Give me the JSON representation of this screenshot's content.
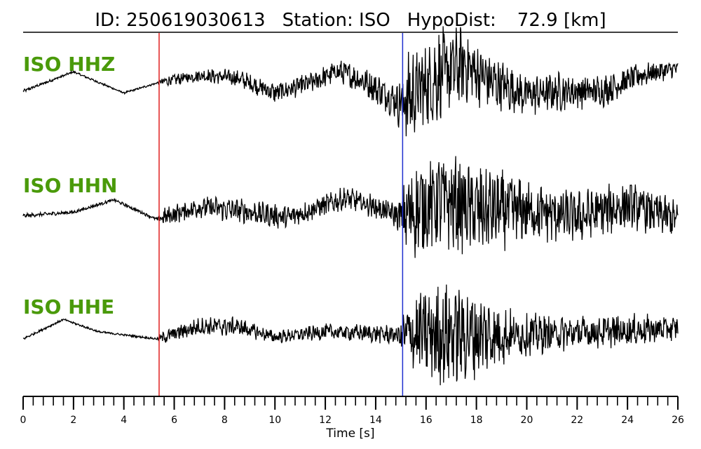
{
  "header": {
    "id_text": "ID: 250619030613",
    "station_text": "Station: ISO",
    "hypodist_label": "HypoDist:",
    "hypodist_value": "72.9 [km]"
  },
  "colors": {
    "channel_label": "#4a9a0a",
    "p_pick": "#e02020",
    "s_pick": "#2030d0",
    "trace": "#000000"
  },
  "chart_data": {
    "type": "line",
    "title": "ID: 250619030613   Station: ISO   HypoDist:    72.9 [km]",
    "xlabel": "Time [s]",
    "xlim": [
      0,
      26
    ],
    "xticks": [
      0,
      2,
      4,
      6,
      8,
      10,
      12,
      14,
      16,
      18,
      20,
      22,
      24,
      26
    ],
    "minor_tick_step": 0.4,
    "picks": [
      {
        "name": "P",
        "time": 5.4,
        "color": "#e02020"
      },
      {
        "name": "S",
        "time": 15.07,
        "color": "#2030d0"
      }
    ],
    "series": [
      {
        "name": "ISO HHZ",
        "envelope": [
          [
            0,
            0.08
          ],
          [
            1.5,
            0.06
          ],
          [
            3,
            0.05
          ],
          [
            4.5,
            0.05
          ],
          [
            5.3,
            0.05
          ],
          [
            5.6,
            0.25
          ],
          [
            8,
            0.4
          ],
          [
            10,
            0.5
          ],
          [
            12,
            0.55
          ],
          [
            13.5,
            0.7
          ],
          [
            14.8,
            0.9
          ],
          [
            15.3,
            2.4
          ],
          [
            16.5,
            2.3
          ],
          [
            18,
            1.6
          ],
          [
            19.5,
            1.1
          ],
          [
            21,
            1.0
          ],
          [
            23,
            0.8
          ],
          [
            24.5,
            0.6
          ],
          [
            26,
            0.4
          ]
        ],
        "lowfreq": [
          [
            0,
            -0.2
          ],
          [
            2,
            0.9
          ],
          [
            4,
            -0.3
          ],
          [
            5.4,
            0.3
          ],
          [
            7,
            0.7
          ],
          [
            8.5,
            0.55
          ],
          [
            10,
            -0.3
          ],
          [
            11.5,
            0.3
          ],
          [
            12.5,
            0.95
          ],
          [
            13.5,
            0.4
          ],
          [
            15,
            -0.9
          ],
          [
            16.5,
            0.7
          ],
          [
            17.5,
            1.3
          ],
          [
            18.5,
            0.4
          ],
          [
            20,
            -0.4
          ],
          [
            21.5,
            -0.2
          ],
          [
            23,
            -0.2
          ],
          [
            24.5,
            0.7
          ],
          [
            26,
            1.1
          ]
        ]
      },
      {
        "name": "ISO HHN",
        "envelope": [
          [
            0,
            0.1
          ],
          [
            2,
            0.08
          ],
          [
            4,
            0.08
          ],
          [
            5.3,
            0.08
          ],
          [
            5.6,
            0.45
          ],
          [
            8,
            0.6
          ],
          [
            10,
            0.6
          ],
          [
            12,
            0.55
          ],
          [
            14,
            0.6
          ],
          [
            14.9,
            0.7
          ],
          [
            15.3,
            2.3
          ],
          [
            17,
            2.4
          ],
          [
            18.5,
            2.2
          ],
          [
            20,
            1.5
          ],
          [
            22,
            1.3
          ],
          [
            24,
            1.2
          ],
          [
            26,
            0.9
          ]
        ],
        "lowfreq": [
          [
            0,
            -0.1
          ],
          [
            2,
            0.1
          ],
          [
            3.6,
            0.8
          ],
          [
            5.3,
            -0.3
          ],
          [
            7,
            0.4
          ],
          [
            8.5,
            0.2
          ],
          [
            10.5,
            -0.2
          ],
          [
            12,
            0.5
          ],
          [
            12.8,
            0.9
          ],
          [
            14,
            0.4
          ],
          [
            15,
            -0.2
          ],
          [
            16.5,
            0.8
          ],
          [
            18,
            0.2
          ],
          [
            20,
            0.2
          ],
          [
            22,
            -0.2
          ],
          [
            24,
            0.5
          ],
          [
            26,
            -0.3
          ]
        ]
      },
      {
        "name": "ISO HHE",
        "envelope": [
          [
            0,
            0.06
          ],
          [
            2,
            0.05
          ],
          [
            4,
            0.05
          ],
          [
            5.3,
            0.05
          ],
          [
            5.6,
            0.35
          ],
          [
            8,
            0.5
          ],
          [
            10,
            0.3
          ],
          [
            12,
            0.4
          ],
          [
            14,
            0.45
          ],
          [
            14.9,
            0.5
          ],
          [
            15.3,
            1.9
          ],
          [
            16.5,
            2.6
          ],
          [
            18,
            2.2
          ],
          [
            19.5,
            1.2
          ],
          [
            21,
            0.9
          ],
          [
            23,
            0.8
          ],
          [
            24.5,
            0.8
          ],
          [
            26,
            0.6
          ]
        ],
        "lowfreq": [
          [
            0,
            -0.2
          ],
          [
            1.6,
            0.9
          ],
          [
            3,
            0.2
          ],
          [
            5.3,
            -0.2
          ],
          [
            7,
            0.5
          ],
          [
            8.5,
            0.5
          ],
          [
            10,
            -0.1
          ],
          [
            12,
            0.2
          ],
          [
            14,
            0.1
          ],
          [
            15,
            0
          ],
          [
            17,
            0.1
          ],
          [
            19,
            0
          ],
          [
            21,
            0.1
          ],
          [
            23,
            0.2
          ],
          [
            26,
            0.4
          ]
        ]
      }
    ]
  }
}
